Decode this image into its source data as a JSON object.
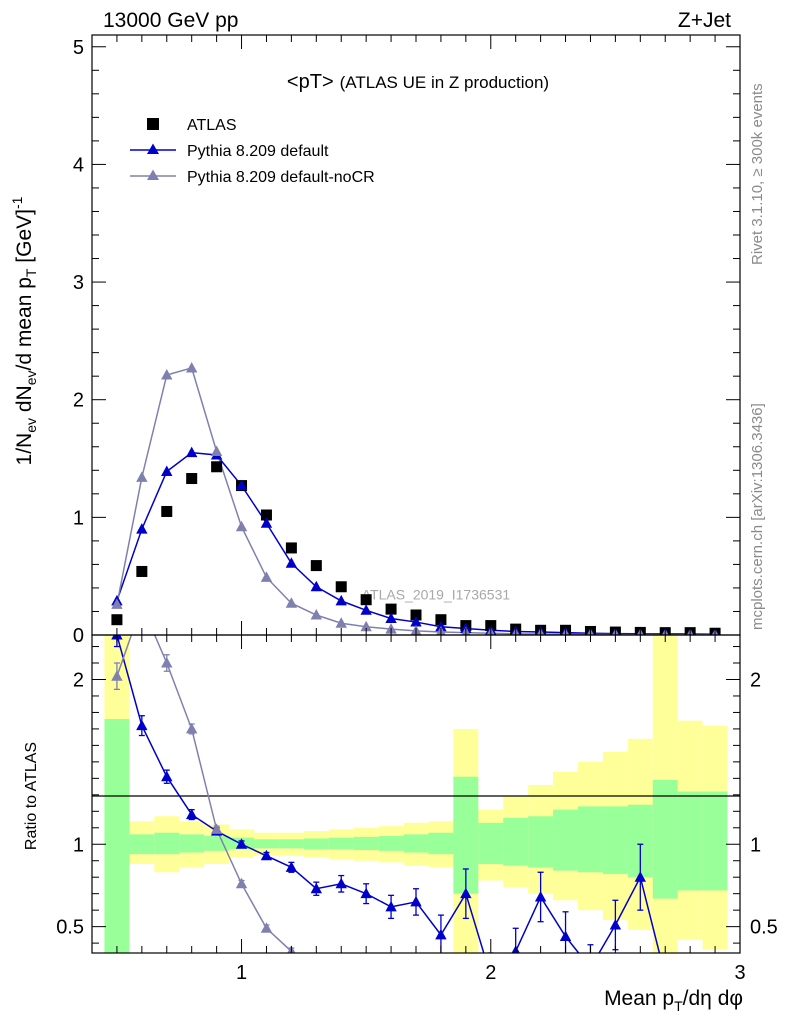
{
  "header": {
    "energy_label": "13000 GeV pp",
    "process_label": "Z+Jet"
  },
  "side_labels": {
    "rivet": "Rivet 3.1.10, ≥ 300k events",
    "site": "mcplots.cern.ch [arXiv:1306.3436]"
  },
  "chart_data": [
    {
      "type": "scatter",
      "panel": "main",
      "title_main": "<pT>",
      "title_sub": "(ATLAS UE in Z production)",
      "watermark": "ATLAS_2019_I1736531",
      "ylabel": "1/N_ev dN_ev/d mean p_T [GeV]^-1",
      "xlim": [
        0.4,
        3.0
      ],
      "ylim": [
        0,
        5.1
      ],
      "y_ticks": [
        "0",
        "1",
        "2",
        "3",
        "4",
        "5"
      ],
      "legend_position": "top-left",
      "series": [
        {
          "name": "ATLAS",
          "color": "#000000",
          "marker": "square",
          "x": [
            0.5,
            0.6,
            0.7,
            0.8,
            0.9,
            1.0,
            1.1,
            1.2,
            1.3,
            1.4,
            1.5,
            1.6,
            1.7,
            1.8,
            1.9,
            2.0,
            2.1,
            2.2,
            2.3,
            2.4,
            2.5,
            2.6,
            2.7,
            2.8,
            2.9
          ],
          "y": [
            0.13,
            0.54,
            1.05,
            1.33,
            1.43,
            1.27,
            1.02,
            0.74,
            0.59,
            0.41,
            0.3,
            0.22,
            0.17,
            0.13,
            0.08,
            0.08,
            0.05,
            0.04,
            0.04,
            0.03,
            0.025,
            0.022,
            0.02,
            0.02,
            0.015
          ]
        },
        {
          "name": "Pythia 8.209 default",
          "color": "#0000cc",
          "marker": "triangle",
          "x": [
            0.5,
            0.6,
            0.7,
            0.8,
            0.9,
            1.0,
            1.1,
            1.2,
            1.3,
            1.4,
            1.5,
            1.6,
            1.7,
            1.8,
            1.9,
            2.0,
            2.1,
            2.2,
            2.3,
            2.4,
            2.5,
            2.6,
            2.7,
            2.8,
            2.9
          ],
          "y": [
            0.29,
            0.9,
            1.39,
            1.55,
            1.53,
            1.27,
            0.95,
            0.61,
            0.41,
            0.29,
            0.21,
            0.14,
            0.11,
            0.07,
            0.055,
            0.04,
            0.03,
            0.025,
            0.02,
            0.015,
            0.012,
            0.01,
            0.01,
            0.008,
            0.006
          ]
        },
        {
          "name": "Pythia 8.209 default-noCR",
          "color": "#8080b0",
          "marker": "triangle",
          "x": [
            0.5,
            0.6,
            0.7,
            0.8,
            0.9,
            1.0,
            1.1,
            1.2,
            1.3,
            1.4,
            1.5,
            1.6,
            1.7,
            1.8,
            1.9,
            2.0,
            2.1,
            2.2,
            2.3,
            2.4,
            2.5,
            2.6,
            2.7,
            2.8,
            2.9
          ],
          "y": [
            0.26,
            1.34,
            2.21,
            2.27,
            1.56,
            0.92,
            0.49,
            0.27,
            0.17,
            0.1,
            0.07,
            0.05,
            0.035,
            0.025,
            0.02,
            0.015,
            0.01,
            0.008,
            0.006,
            0.005,
            0.004,
            0.003,
            0.002,
            0.002,
            0.001
          ]
        }
      ]
    },
    {
      "type": "line",
      "panel": "ratio",
      "ylabel": "Ratio to ATLAS",
      "xlabel": "Mean p_T/dη dφ",
      "xlim": [
        0.4,
        3.0
      ],
      "ylim": [
        0.34,
        2.27
      ],
      "x_ticks": [
        "1",
        "2",
        "3"
      ],
      "y_ticks": [
        "0.5",
        "1",
        "2"
      ],
      "band_edges": [
        0.45,
        0.55,
        0.65,
        0.75,
        0.85,
        0.95,
        1.05,
        1.15,
        1.25,
        1.35,
        1.45,
        1.55,
        1.65,
        1.75,
        1.85,
        1.95,
        2.05,
        2.15,
        2.25,
        2.35,
        2.45,
        2.55,
        2.65,
        2.75,
        2.85,
        2.95
      ],
      "band_stat": {
        "color": "#99ff99",
        "low": [
          0.3,
          0.94,
          0.94,
          0.95,
          0.96,
          0.97,
          0.975,
          0.975,
          0.97,
          0.97,
          0.965,
          0.96,
          0.95,
          0.94,
          0.7,
          0.88,
          0.87,
          0.86,
          0.84,
          0.83,
          0.82,
          0.8,
          0.67,
          0.72,
          0.72
        ],
        "high": [
          1.76,
          1.06,
          1.07,
          1.06,
          1.05,
          1.04,
          1.03,
          1.03,
          1.035,
          1.04,
          1.045,
          1.05,
          1.06,
          1.07,
          1.41,
          1.13,
          1.16,
          1.17,
          1.21,
          1.23,
          1.23,
          1.24,
          1.39,
          1.32,
          1.32
        ]
      },
      "band_total": {
        "color": "#ffff99",
        "low": [
          0.3,
          0.88,
          0.83,
          0.86,
          0.88,
          0.92,
          0.93,
          0.93,
          0.92,
          0.91,
          0.9,
          0.89,
          0.87,
          0.86,
          0.34,
          0.78,
          0.74,
          0.7,
          0.66,
          0.6,
          0.54,
          0.48,
          0.34,
          0.42,
          0.36
        ],
        "high": [
          2.27,
          1.14,
          1.17,
          1.14,
          1.12,
          1.09,
          1.07,
          1.07,
          1.08,
          1.09,
          1.1,
          1.11,
          1.13,
          1.14,
          1.7,
          1.21,
          1.29,
          1.36,
          1.44,
          1.5,
          1.56,
          1.64,
          2.27,
          1.75,
          1.72
        ]
      },
      "series": [
        {
          "name": "Pythia 8.209 default",
          "color": "#0000cc",
          "marker": "triangle",
          "x": [
            0.5,
            0.6,
            0.7,
            0.8,
            0.9,
            1.0,
            1.1,
            1.2,
            1.3,
            1.4,
            1.5,
            1.6,
            1.7,
            1.8,
            1.9,
            2.0,
            2.1,
            2.2,
            2.3,
            2.4,
            2.5,
            2.6,
            2.7
          ],
          "y": [
            2.27,
            1.72,
            1.41,
            1.18,
            1.08,
            1.0,
            0.93,
            0.86,
            0.73,
            0.76,
            0.7,
            0.62,
            0.65,
            0.45,
            0.7,
            0.2,
            0.35,
            0.68,
            0.44,
            0.25,
            0.51,
            0.8,
            0.2
          ],
          "err": [
            0.07,
            0.06,
            0.04,
            0.03,
            0.02,
            0.02,
            0.02,
            0.03,
            0.04,
            0.05,
            0.06,
            0.07,
            0.08,
            0.12,
            0.15,
            0.14,
            0.14,
            0.15,
            0.15,
            0.14,
            0.15,
            0.2,
            0.1
          ]
        },
        {
          "name": "Pythia 8.209 default-noCR",
          "color": "#8080b0",
          "marker": "triangle",
          "x": [
            0.5,
            0.6,
            0.7,
            0.8,
            0.9,
            1.0,
            1.1,
            1.2,
            1.3
          ],
          "y": [
            2.02,
            2.45,
            2.1,
            1.7,
            1.09,
            0.76,
            0.49,
            0.35,
            0.25
          ],
          "err": [
            0.08,
            0.07,
            0.05,
            0.03,
            0.02,
            0.02,
            0.02,
            0.02,
            0.02
          ]
        }
      ]
    }
  ]
}
